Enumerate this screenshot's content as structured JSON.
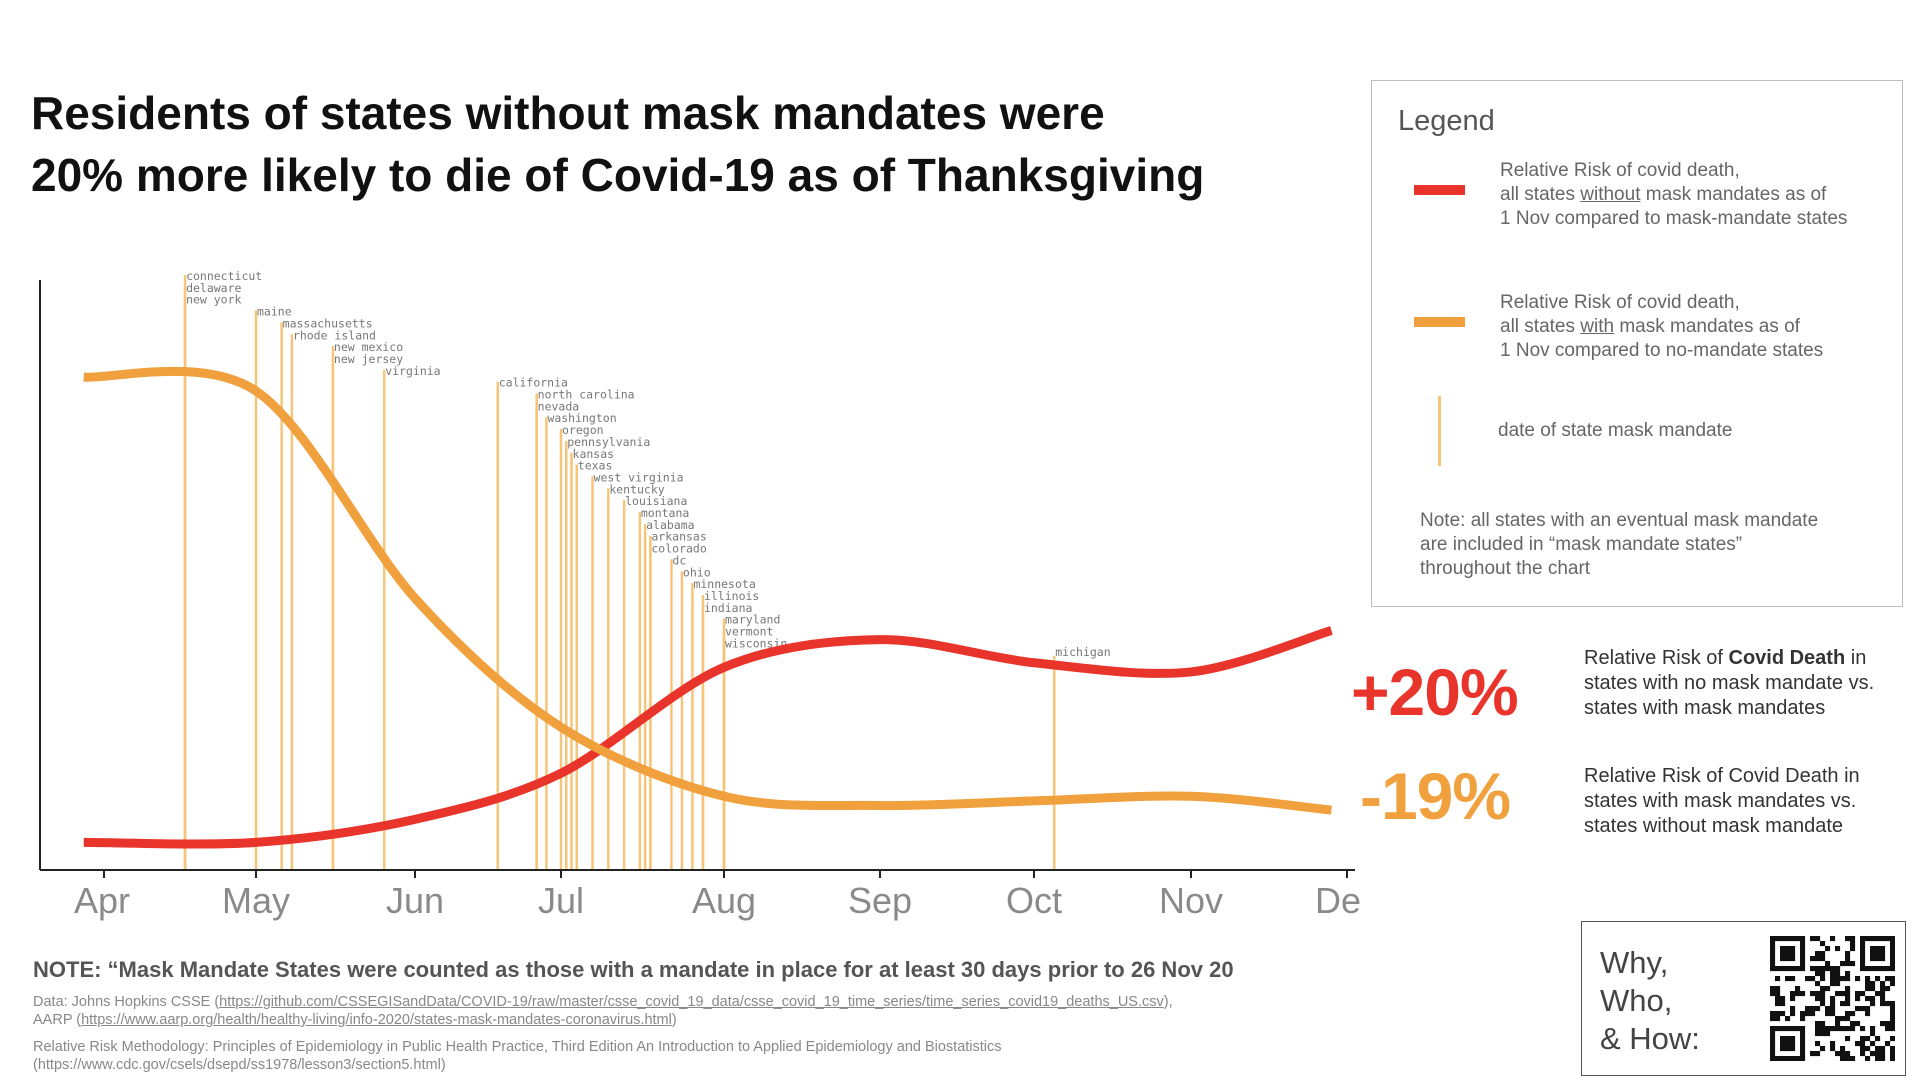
{
  "title": {
    "line1": "Residents of states without mask mandates were",
    "line2": "20% more likely to die of Covid-19 as of Thanksgiving"
  },
  "chart_data": {
    "type": "line",
    "title": "Residents of states without mask mandates were 20% more likely to die of Covid-19 as of Thanksgiving",
    "xlabel": "",
    "ylabel": "",
    "grid": false,
    "legend_position": "right",
    "x_months": [
      "Apr",
      "May",
      "Jun",
      "Jul",
      "Aug",
      "Sep",
      "Oct",
      "Nov",
      "Dec"
    ],
    "ylim": [
      -0.32,
      0.95
    ],
    "series": [
      {
        "name": "Relative Risk of covid death, all states without mask mandates as of 1 Nov compared to mask-mandate states",
        "color": "#e8342a",
        "points": [
          [
            "2020-03-28",
            -0.26
          ],
          [
            "2020-05-01",
            -0.26
          ],
          [
            "2020-06-01",
            -0.21
          ],
          [
            "2020-07-01",
            -0.11
          ],
          [
            "2020-08-01",
            0.12
          ],
          [
            "2020-09-01",
            0.18
          ],
          [
            "2020-10-01",
            0.13
          ],
          [
            "2020-11-01",
            0.11
          ],
          [
            "2020-11-28",
            0.2
          ]
        ]
      },
      {
        "name": "Relative Risk of covid death, all states with mask mandates as of 1 Nov compared to no-mandate states",
        "color": "#f0a03c",
        "points": [
          [
            "2020-03-28",
            0.75
          ],
          [
            "2020-05-01",
            0.72
          ],
          [
            "2020-06-01",
            0.27
          ],
          [
            "2020-07-01",
            -0.01
          ],
          [
            "2020-08-01",
            -0.16
          ],
          [
            "2020-09-01",
            -0.18
          ],
          [
            "2020-10-01",
            -0.17
          ],
          [
            "2020-11-01",
            -0.16
          ],
          [
            "2020-11-28",
            -0.19
          ]
        ]
      }
    ],
    "mandates": [
      {
        "state": "connecticut",
        "date": "2020-04-17"
      },
      {
        "state": "delaware",
        "date": "2020-04-17"
      },
      {
        "state": "new york",
        "date": "2020-04-17"
      },
      {
        "state": "maine",
        "date": "2020-05-01"
      },
      {
        "state": "massachusetts",
        "date": "2020-05-06"
      },
      {
        "state": "rhode island",
        "date": "2020-05-08"
      },
      {
        "state": "new mexico",
        "date": "2020-05-16"
      },
      {
        "state": "new jersey",
        "date": "2020-05-16"
      },
      {
        "state": "virginia",
        "date": "2020-05-26"
      },
      {
        "state": "california",
        "date": "2020-06-18"
      },
      {
        "state": "north carolina",
        "date": "2020-06-26"
      },
      {
        "state": "nevada",
        "date": "2020-06-26"
      },
      {
        "state": "washington",
        "date": "2020-06-28"
      },
      {
        "state": "oregon",
        "date": "2020-07-01"
      },
      {
        "state": "pennsylvania",
        "date": "2020-07-02"
      },
      {
        "state": "kansas",
        "date": "2020-07-03"
      },
      {
        "state": "texas",
        "date": "2020-07-04"
      },
      {
        "state": "west virginia",
        "date": "2020-07-07"
      },
      {
        "state": "kentucky",
        "date": "2020-07-10"
      },
      {
        "state": "louisiana",
        "date": "2020-07-13"
      },
      {
        "state": "montana",
        "date": "2020-07-16"
      },
      {
        "state": "alabama",
        "date": "2020-07-17"
      },
      {
        "state": "arkansas",
        "date": "2020-07-18"
      },
      {
        "state": "colorado",
        "date": "2020-07-18"
      },
      {
        "state": "dc",
        "date": "2020-07-22"
      },
      {
        "state": "ohio",
        "date": "2020-07-24"
      },
      {
        "state": "minnesota",
        "date": "2020-07-26"
      },
      {
        "state": "illinois",
        "date": "2020-07-28"
      },
      {
        "state": "indiana",
        "date": "2020-07-28"
      },
      {
        "state": "maryland",
        "date": "2020-08-01"
      },
      {
        "state": "vermont",
        "date": "2020-08-01"
      },
      {
        "state": "wisconsin",
        "date": "2020-08-01"
      },
      {
        "state": "michigan",
        "date": "2020-10-05"
      }
    ]
  },
  "legend": {
    "title": "Legend",
    "red": {
      "line1": "Relative Risk of covid death,",
      "line2_pre": "all states ",
      "line2_u": "without",
      "line2_post": " mask mandates as of",
      "line3": "1 Nov compared to mask-mandate states",
      "color": "#e8342a"
    },
    "orange": {
      "line1": "Relative Risk of covid death,",
      "line2_pre": "all states ",
      "line2_u": "with",
      "line2_post": " mask mandates as of",
      "line3": "1 Nov compared to no-mandate states",
      "color": "#f0a03c"
    },
    "mandate": {
      "text": "date of state mask mandate",
      "color": "#f5c57a"
    },
    "note": "Note: all states with an eventual mask mandate are included in “mask mandate states” throughout the chart"
  },
  "results": {
    "red_value": "+20%",
    "red_desc_pre": "Relative Risk of ",
    "red_desc_bold": "Covid Death",
    "red_desc_post": " in states with no mask mandate vs. states with mask mandates",
    "orange_value": "-19%",
    "orange_desc": "Relative Risk of Covid Death in states with mask mandates vs. states without mask mandate"
  },
  "footer": {
    "note": "NOTE: “Mask Mandate States were counted as those with a mandate in place for at least 30 days prior to 26 Nov 20",
    "data_pre": "Data: Johns Hopkins CSSE (",
    "data_link1": "https://github.com/CSSEGISandData/COVID-19/raw/master/csse_covid_19_data/csse_covid_19_time_series/time_series_covid19_deaths_US.csv",
    "data_mid": "),",
    "data_aarp": "AARP (",
    "data_link2": "https://www.aarp.org/health/healthy-living/info-2020/states-mask-mandates-coronavirus.html",
    "data_end": ")",
    "method": "Relative Risk Methodology: Principles of Epidemiology in Public Health Practice, Third Edition An Introduction to Applied Epidemiology and Biostatistics (https://www.cdc.gov/csels/dsepd/ss1978/lesson3/section5.html)"
  },
  "qr": {
    "label_line1": "Why,",
    "label_line2": "Who,",
    "label_line3": "& How:"
  }
}
